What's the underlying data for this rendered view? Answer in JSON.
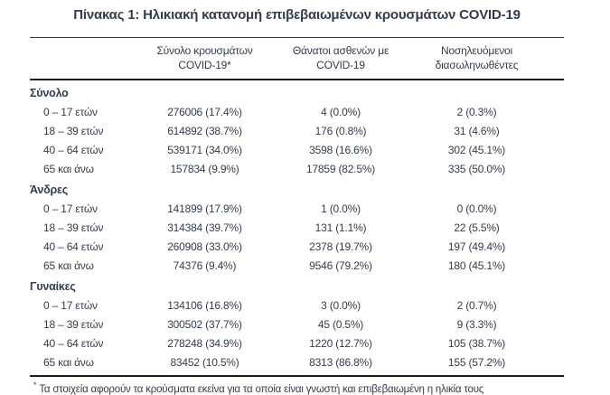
{
  "title": "Πίνακας 1: Ηλικιακή κατανομή επιβεβαιωμένων κρουσμάτων COVID-19",
  "colors": {
    "text": "#333d4c",
    "rule": "#1d1d1d",
    "background": "#ffffff"
  },
  "table": {
    "columns": [
      {
        "lines": [
          "",
          ""
        ]
      },
      {
        "lines": [
          "Σύνολο κρουσμάτων",
          "COVID-19*"
        ]
      },
      {
        "lines": [
          "Θάνατοι ασθενών με",
          "COVID-19"
        ]
      },
      {
        "lines": [
          "Νοσηλευόμενοι",
          "διασωληνωθέντες"
        ]
      }
    ],
    "sections": [
      {
        "label": "Σύνολο",
        "rows": [
          {
            "label": "0 – 17 ετών",
            "cases": "276006 (17.4%)",
            "deaths": "4 (0.0%)",
            "intubated": "2 (0.3%)"
          },
          {
            "label": "18 – 39 ετών",
            "cases": "614892 (38.7%)",
            "deaths": "176 (0.8%)",
            "intubated": "31 (4.6%)"
          },
          {
            "label": "40 – 64 ετών",
            "cases": "539171 (34.0%)",
            "deaths": "3598 (16.6%)",
            "intubated": "302 (45.1%)"
          },
          {
            "label": "65 και άνω",
            "cases": "157834 (9.9%)",
            "deaths": "17859 (82.5%)",
            "intubated": "335 (50.0%)"
          }
        ]
      },
      {
        "label": "Άνδρες",
        "rows": [
          {
            "label": "0 – 17 ετών",
            "cases": "141899 (17.9%)",
            "deaths": "1 (0.0%)",
            "intubated": "0 (0.0%)"
          },
          {
            "label": "18 – 39 ετών",
            "cases": "314384 (39.7%)",
            "deaths": "131 (1.1%)",
            "intubated": "22 (5.5%)"
          },
          {
            "label": "40 – 64 ετών",
            "cases": "260908 (33.0%)",
            "deaths": "2378 (19.7%)",
            "intubated": "197 (49.4%)"
          },
          {
            "label": "65 και άνω",
            "cases": "74376 (9.4%)",
            "deaths": "9546 (79.2%)",
            "intubated": "180 (45.1%)"
          }
        ]
      },
      {
        "label": "Γυναίκες",
        "rows": [
          {
            "label": "0 – 17 ετών",
            "cases": "134106 (16.8%)",
            "deaths": "3 (0.0%)",
            "intubated": "2 (0.7%)"
          },
          {
            "label": "18 – 39 ετών",
            "cases": "300502 (37.7%)",
            "deaths": "45 (0.5%)",
            "intubated": "9 (3.3%)"
          },
          {
            "label": "40 – 64 ετών",
            "cases": "278248 (34.9%)",
            "deaths": "1220 (12.7%)",
            "intubated": "105 (38.7%)"
          },
          {
            "label": "65 και άνω",
            "cases": "83452 (10.5%)",
            "deaths": "8313 (86.8%)",
            "intubated": "155 (57.2%)"
          }
        ]
      }
    ],
    "footnote_marker": "*",
    "footnote": "Τα στοιχεία αφορούν τα κρούσματα εκείνα για τα οποία είναι γνωστή και επιβεβαιωμένη η ηλικία τους"
  }
}
